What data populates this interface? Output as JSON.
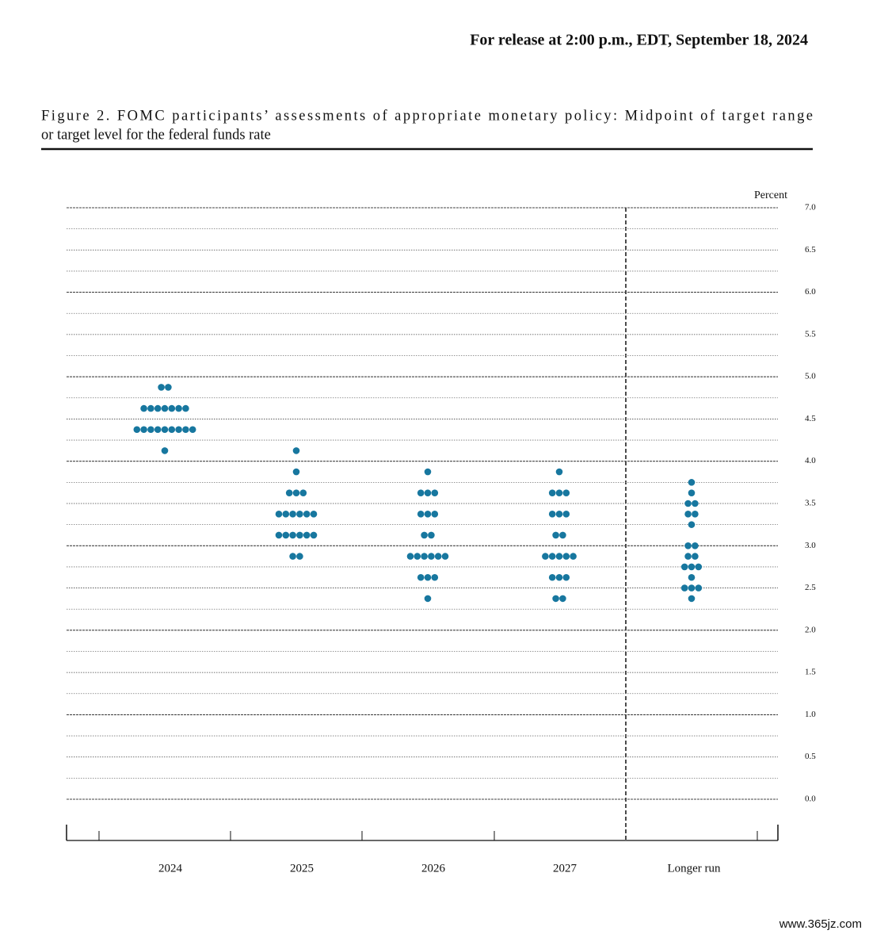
{
  "header": "For release at 2:00 p.m., EDT, September 18, 2024",
  "watermark": "www.365jz.com",
  "chart_data": {
    "type": "dot",
    "title_lines": [
      "Figure 2.  FOMC participants’ assessments of appropriate monetary policy:  Midpoint of target range",
      "or target level for the federal funds rate"
    ],
    "y_label": "Percent",
    "color": "#17779f",
    "grid": true,
    "categories": [
      "2024",
      "2025",
      "2026",
      "2027",
      "Longer run"
    ],
    "points": [
      [
        {
          "value": 4.875,
          "count": 2
        },
        {
          "value": 4.625,
          "count": 7
        },
        {
          "value": 4.375,
          "count": 9
        },
        {
          "value": 4.125,
          "count": 1
        }
      ],
      [
        {
          "value": 4.125,
          "count": 1
        },
        {
          "value": 3.875,
          "count": 1
        },
        {
          "value": 3.625,
          "count": 3
        },
        {
          "value": 3.375,
          "count": 6
        },
        {
          "value": 3.125,
          "count": 6
        },
        {
          "value": 2.875,
          "count": 2
        }
      ],
      [
        {
          "value": 3.875,
          "count": 1
        },
        {
          "value": 3.625,
          "count": 3
        },
        {
          "value": 3.375,
          "count": 3
        },
        {
          "value": 3.125,
          "count": 2
        },
        {
          "value": 2.875,
          "count": 6
        },
        {
          "value": 2.625,
          "count": 3
        },
        {
          "value": 2.375,
          "count": 1
        }
      ],
      [
        {
          "value": 3.875,
          "count": 1
        },
        {
          "value": 3.625,
          "count": 3
        },
        {
          "value": 3.375,
          "count": 3
        },
        {
          "value": 3.125,
          "count": 2
        },
        {
          "value": 2.875,
          "count": 5
        },
        {
          "value": 2.625,
          "count": 3
        },
        {
          "value": 2.375,
          "count": 2
        }
      ],
      [
        {
          "value": 3.75,
          "count": 1
        },
        {
          "value": 3.625,
          "count": 1
        },
        {
          "value": 3.5,
          "count": 2
        },
        {
          "value": 3.375,
          "count": 2
        },
        {
          "value": 3.25,
          "count": 1
        },
        {
          "value": 3.0,
          "count": 2
        },
        {
          "value": 2.875,
          "count": 2
        },
        {
          "value": 2.75,
          "count": 3
        },
        {
          "value": 2.625,
          "count": 1
        },
        {
          "value": 2.5,
          "count": 3
        },
        {
          "value": 2.375,
          "count": 1
        }
      ]
    ],
    "ylim": [
      0,
      7
    ],
    "yticks": [
      {
        "value": 0,
        "label": "0.0"
      },
      {
        "value": 0.5,
        "label": "0.5"
      },
      {
        "value": 1,
        "label": "1.0"
      },
      {
        "value": 1.5,
        "label": "1.5"
      },
      {
        "value": 2,
        "label": "2.0"
      },
      {
        "value": 2.5,
        "label": "2.5"
      },
      {
        "value": 3,
        "label": "3.0"
      },
      {
        "value": 3.5,
        "label": "3.5"
      },
      {
        "value": 4,
        "label": "4.0"
      },
      {
        "value": 4.5,
        "label": "4.5"
      },
      {
        "value": 5,
        "label": "5.0"
      },
      {
        "value": 5.5,
        "label": "5.5"
      },
      {
        "value": 6,
        "label": "6.0"
      },
      {
        "value": 6.5,
        "label": "6.5"
      },
      {
        "value": 7,
        "label": "7.0"
      }
    ],
    "yticks_minor": [
      0.25,
      0.75,
      1.25,
      1.75,
      2.25,
      2.75,
      3.25,
      3.75,
      4.25,
      4.75,
      5.25,
      5.75,
      6.25,
      6.75
    ]
  }
}
